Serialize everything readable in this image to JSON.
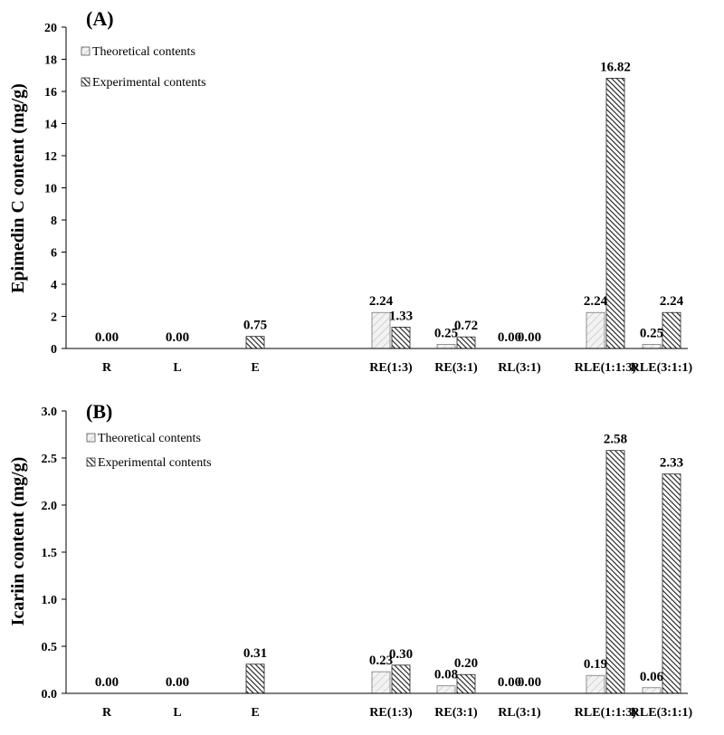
{
  "chart_data": [
    {
      "type": "bar",
      "title": "(A)",
      "ylabel": "Epimedin C content (mg/g)",
      "xlabel": "",
      "ylim": [
        0,
        20
      ],
      "yticks": [
        "0",
        "2",
        "4",
        "6",
        "8",
        "10",
        "12",
        "14",
        "16",
        "18",
        "20"
      ],
      "grid": false,
      "legend": "top-left",
      "categories": [
        "R",
        "L",
        "E",
        "RE(1:3)",
        "RE(3:1)",
        "RL(3:1)",
        "RLE(1:1:3)",
        "RLE(3:1:1)"
      ],
      "series": [
        {
          "name": "Theoretical contents",
          "values": [
            null,
            null,
            null,
            2.24,
            0.25,
            0.0,
            2.24,
            0.25
          ],
          "labels": [
            "",
            "",
            "",
            "2.24",
            "0.25",
            "0.00",
            "2.24",
            "0.25"
          ]
        },
        {
          "name": "Experimental contents",
          "values": [
            0.0,
            0.0,
            0.75,
            1.33,
            0.72,
            0.0,
            16.82,
            2.24
          ],
          "labels": [
            "0.00",
            "0.00",
            "0.75",
            "1.33",
            "0.72",
            "0.00",
            "16.82",
            "2.24"
          ]
        }
      ]
    },
    {
      "type": "bar",
      "title": "(B)",
      "ylabel": "Icariin content (mg/g)",
      "xlabel": "",
      "ylim": [
        0,
        3.0
      ],
      "yticks": [
        "0.0",
        "0.5",
        "1.0",
        "1.5",
        "2.0",
        "2.5",
        "3.0"
      ],
      "grid": false,
      "legend": "top-left",
      "categories": [
        "R",
        "L",
        "E",
        "RE(1:3)",
        "RE(3:1)",
        "RL(3:1)",
        "RLE(1:1:3)",
        "RLE(3:1:1)"
      ],
      "series": [
        {
          "name": "Theoretical contents",
          "values": [
            null,
            null,
            null,
            0.23,
            0.08,
            0.0,
            0.19,
            0.06
          ],
          "labels": [
            "",
            "",
            "",
            "0.23",
            "0.08",
            "0.00",
            "0.19",
            "0.06"
          ]
        },
        {
          "name": "Experimental contents",
          "values": [
            0.0,
            0.0,
            0.31,
            0.3,
            0.2,
            0.0,
            2.58,
            2.33
          ],
          "labels": [
            "0.00",
            "0.00",
            "0.31",
            "0.30",
            "0.20",
            "0.00",
            "2.58",
            "2.33"
          ]
        }
      ]
    }
  ]
}
